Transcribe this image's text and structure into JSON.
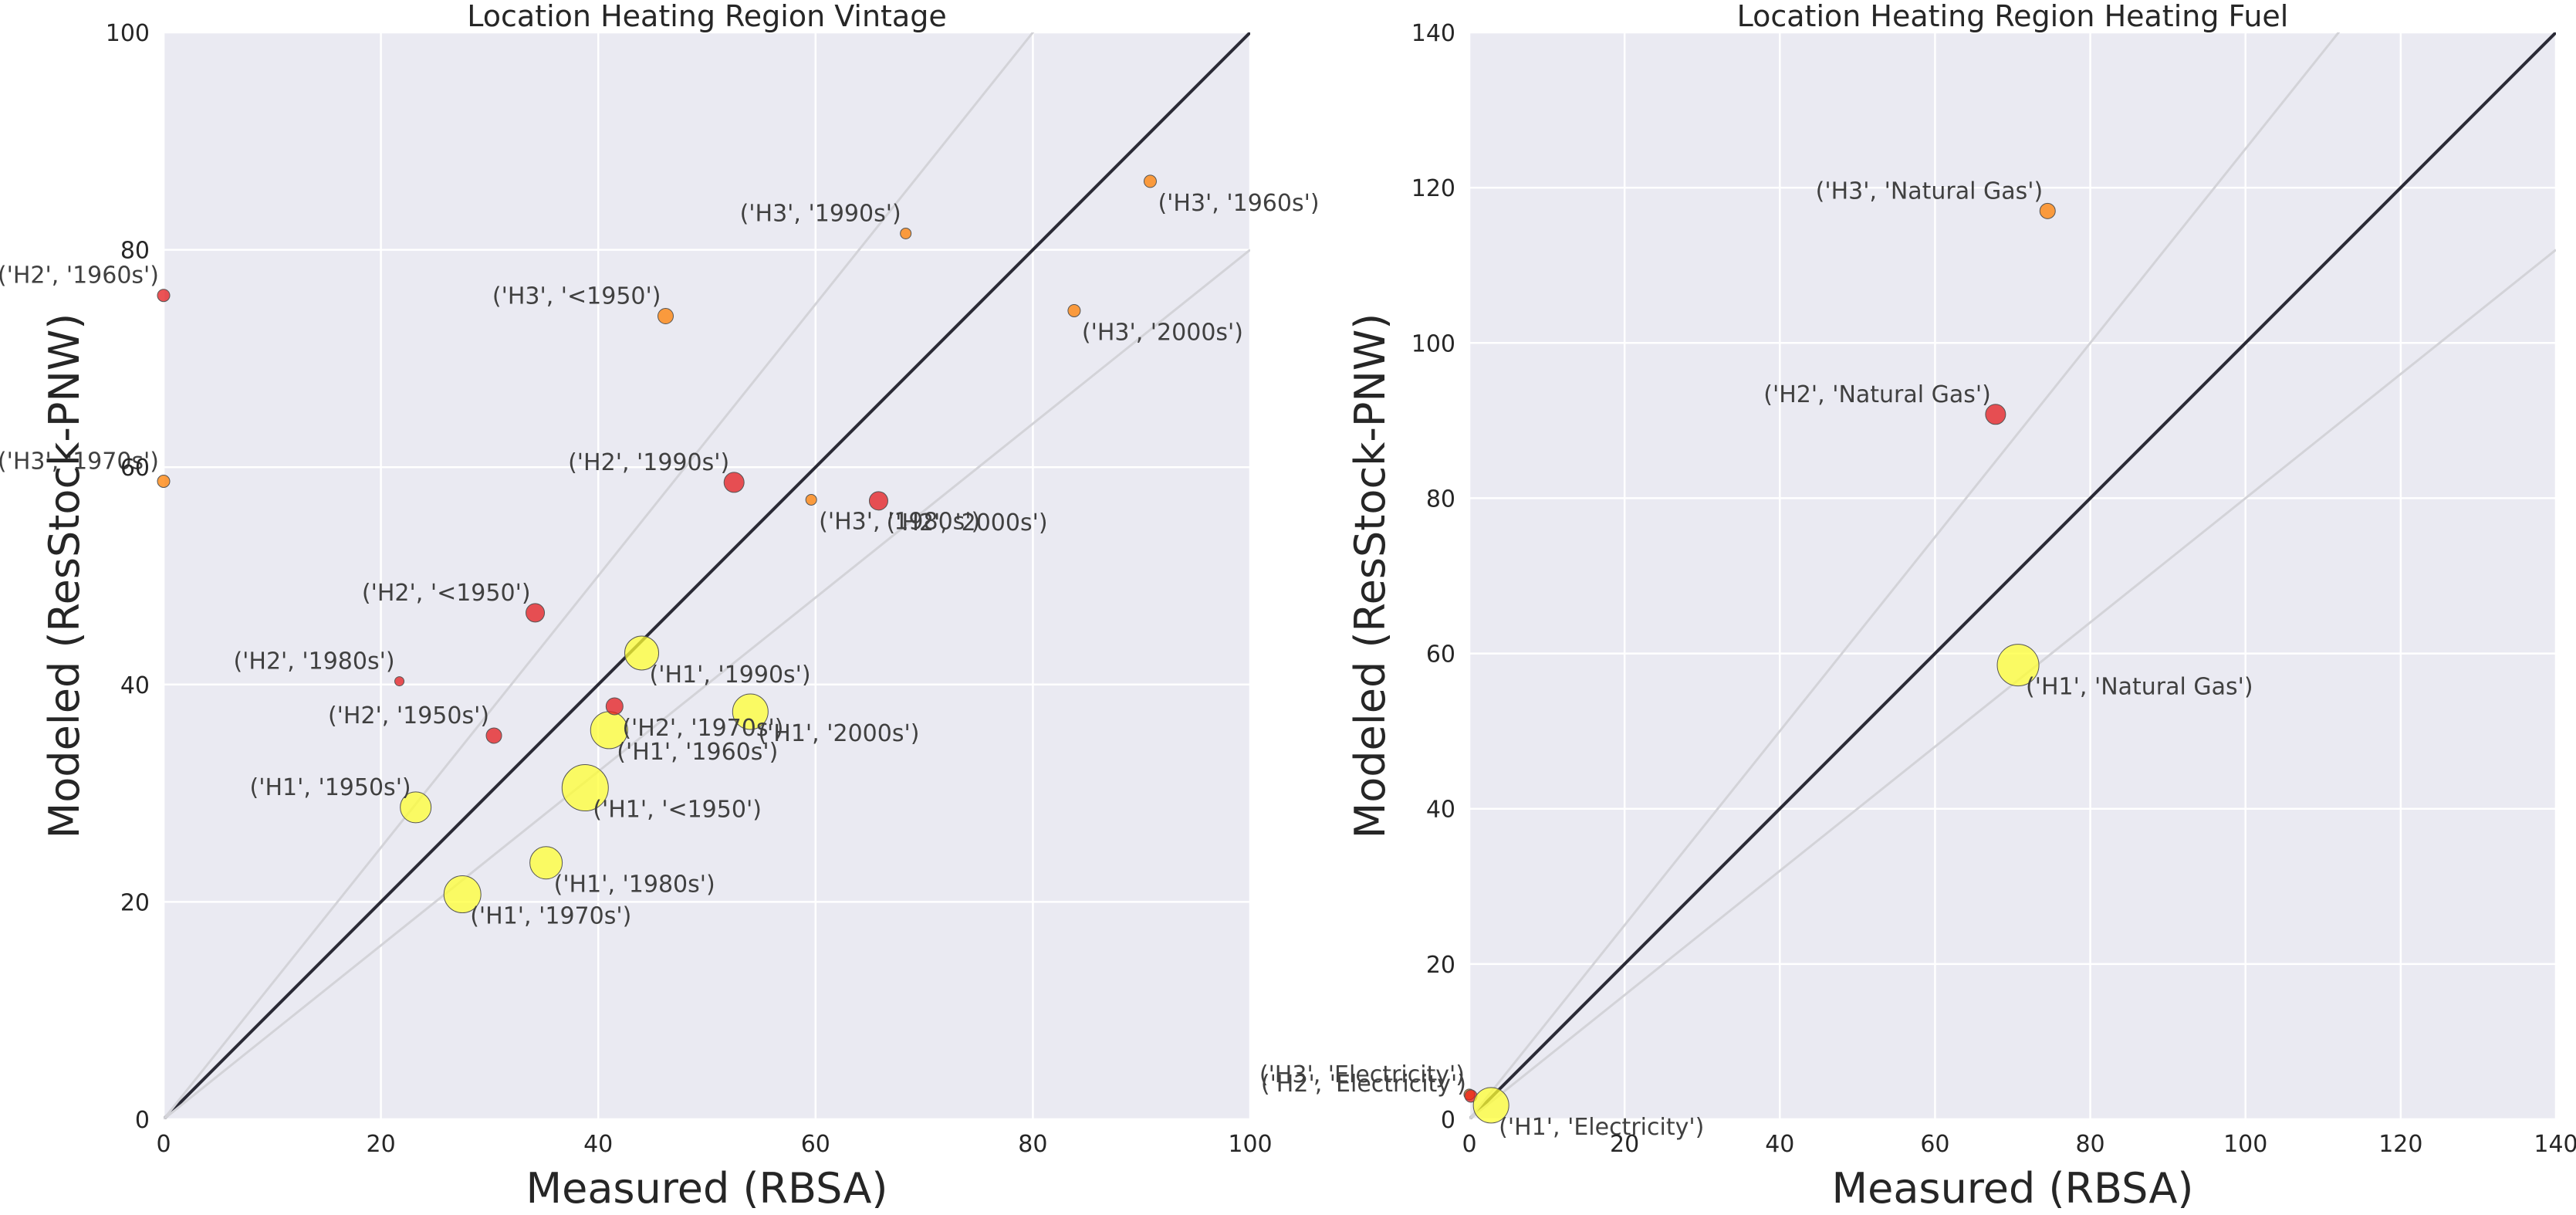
{
  "chart_data": [
    {
      "type": "scatter",
      "title": "Location Heating Region Vintage",
      "xlabel": "Measured (RBSA)",
      "ylabel": "Modeled (ResStock-PNW)",
      "xlim": [
        0,
        100
      ],
      "ylim": [
        0,
        100
      ],
      "xticks": [
        "0",
        "20",
        "40",
        "60",
        "80",
        "100"
      ],
      "yticks": [
        "0",
        "20",
        "40",
        "60",
        "80",
        "100"
      ],
      "grid": true,
      "reference_lines": [
        {
          "slope": 1.0,
          "role": "identity",
          "color": "#2b2b36"
        },
        {
          "slope": 1.25,
          "role": "guide",
          "color": "#d3d3d8"
        },
        {
          "slope": 0.8,
          "role": "guide",
          "color": "#d3d3d8"
        }
      ],
      "colors": {
        "H1": "#ffff33",
        "H2": "#e41a1c",
        "H3": "#ff7f00"
      },
      "points": [
        {
          "label": "('H1', '1950s')",
          "x": 23.2,
          "y": 28.7,
          "region": "H1",
          "size": 20,
          "anchor": "left-above"
        },
        {
          "label": "('H1', '1970s')",
          "x": 27.5,
          "y": 20.7,
          "region": "H1",
          "size": 24,
          "anchor": "right-below"
        },
        {
          "label": "('H1', '1980s')",
          "x": 35.2,
          "y": 23.6,
          "region": "H1",
          "size": 21,
          "anchor": "right-below"
        },
        {
          "label": "('H1', '<1950')",
          "x": 38.8,
          "y": 30.5,
          "region": "H1",
          "size": 30,
          "anchor": "right-below"
        },
        {
          "label": "('H1', '1960s')",
          "x": 41.0,
          "y": 35.8,
          "region": "H1",
          "size": 24,
          "anchor": "right-below"
        },
        {
          "label": "('H1', '1990s')",
          "x": 44.0,
          "y": 42.9,
          "region": "H1",
          "size": 22,
          "anchor": "right-below"
        },
        {
          "label": "('H1', '2000s')",
          "x": 54.0,
          "y": 37.5,
          "region": "H1",
          "size": 23,
          "anchor": "right-below"
        },
        {
          "label": "('H2', '1980s')",
          "x": 21.7,
          "y": 40.3,
          "region": "H2",
          "size": 6,
          "anchor": "left-above"
        },
        {
          "label": "('H2', '1950s')",
          "x": 30.4,
          "y": 35.3,
          "region": "H2",
          "size": 10,
          "anchor": "left-above"
        },
        {
          "label": "('H2', '<1950')",
          "x": 34.2,
          "y": 46.6,
          "region": "H2",
          "size": 12,
          "anchor": "left-above"
        },
        {
          "label": "('H2', '1970s')",
          "x": 41.5,
          "y": 38.0,
          "region": "H2",
          "size": 11,
          "anchor": "right-below"
        },
        {
          "label": "('H2', '1990s')",
          "x": 52.5,
          "y": 58.6,
          "region": "H2",
          "size": 13,
          "anchor": "left-above"
        },
        {
          "label": "('H2', '2000s')",
          "x": 65.8,
          "y": 56.9,
          "region": "H2",
          "size": 12,
          "anchor": "right-below"
        },
        {
          "label": "('H2', '1960s')",
          "x": 0.0,
          "y": 75.8,
          "region": "H2",
          "size": 8,
          "anchor": "left-above"
        },
        {
          "label": "('H3', '1970s')",
          "x": 0.0,
          "y": 58.7,
          "region": "H3",
          "size": 8,
          "anchor": "left-above"
        },
        {
          "label": "('H3', '<1950')",
          "x": 46.2,
          "y": 73.9,
          "region": "H3",
          "size": 10,
          "anchor": "left-above"
        },
        {
          "label": "('H3', '1990s')",
          "x": 68.3,
          "y": 81.5,
          "region": "H3",
          "size": 7,
          "anchor": "left-above"
        },
        {
          "label": "('H3', '1960s')",
          "x": 90.8,
          "y": 86.3,
          "region": "H3",
          "size": 8,
          "anchor": "right-below"
        },
        {
          "label": "('H3', '2000s')",
          "x": 83.8,
          "y": 74.4,
          "region": "H3",
          "size": 8,
          "anchor": "right-below"
        },
        {
          "label": "('H3', '1980s')",
          "x": 59.6,
          "y": 57.0,
          "region": "H3",
          "size": 7,
          "anchor": "right-below"
        }
      ]
    },
    {
      "type": "scatter",
      "title": "Location Heating Region Heating Fuel",
      "xlabel": "Measured (RBSA)",
      "ylabel": "Modeled (ResStock-PNW)",
      "xlim": [
        0,
        140
      ],
      "ylim": [
        0,
        140
      ],
      "xticks": [
        "0",
        "20",
        "40",
        "60",
        "80",
        "100",
        "120",
        "140"
      ],
      "yticks": [
        "0",
        "20",
        "40",
        "60",
        "80",
        "100",
        "120",
        "140"
      ],
      "grid": true,
      "reference_lines": [
        {
          "slope": 1.0,
          "role": "identity",
          "color": "#2b2b36"
        },
        {
          "slope": 1.25,
          "role": "guide",
          "color": "#d3d3d8"
        },
        {
          "slope": 0.8,
          "role": "guide",
          "color": "#d3d3d8"
        }
      ],
      "colors": {
        "H1": "#ffff33",
        "H2": "#e41a1c",
        "H3": "#ff7f00"
      },
      "points": [
        {
          "label": "('H3', 'Natural Gas')",
          "x": 74.5,
          "y": 117.0,
          "region": "H3",
          "size": 10,
          "anchor": "left-above"
        },
        {
          "label": "('H2', 'Natural Gas')",
          "x": 67.8,
          "y": 90.8,
          "region": "H2",
          "size": 13,
          "anchor": "left-above"
        },
        {
          "label": "('H1', 'Natural Gas')",
          "x": 70.7,
          "y": 58.5,
          "region": "H1",
          "size": 27,
          "anchor": "right-below"
        },
        {
          "label": "('H3', 'Electricity')",
          "x": 0.0,
          "y": 3.2,
          "region": "H3",
          "size": 7,
          "anchor": "left-above"
        },
        {
          "label": "('H2', 'Electricity')",
          "x": 0.2,
          "y": 3.0,
          "region": "H2",
          "size": 8,
          "anchor": "left-above-low"
        },
        {
          "label": "('H1', 'Electricity')",
          "x": 2.8,
          "y": 1.8,
          "region": "H1",
          "size": 23,
          "anchor": "right-below"
        }
      ]
    }
  ]
}
